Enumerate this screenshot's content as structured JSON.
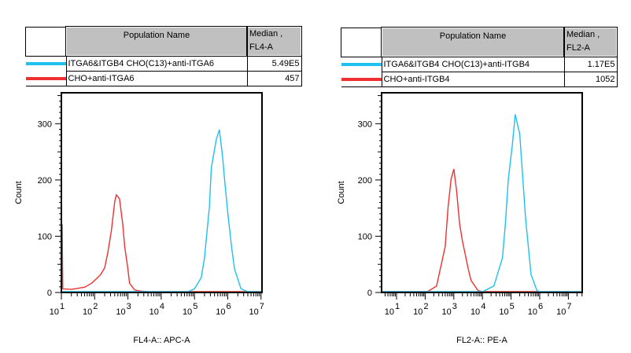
{
  "colors": {
    "cyan": "#1ec0f0",
    "red": "#f03030"
  },
  "chart_data": [
    {
      "type": "line",
      "subtype": "histogram",
      "xlabel": "FL4-A:: APC-A",
      "ylabel": "Count",
      "x_scale": "log",
      "x_tick_labels": [
        {
          "base": "10",
          "exp": "1"
        },
        {
          "base": "10",
          "exp": "2"
        },
        {
          "base": "10",
          "exp": "3"
        },
        {
          "base": "10",
          "exp": "4"
        },
        {
          "base": "10",
          "exp": "5"
        },
        {
          "base": "10",
          "exp": "6"
        },
        {
          "base": "10",
          "exp": "7"
        }
      ],
      "y_ticks": [
        "0",
        "100",
        "200",
        "300"
      ],
      "ylim": [
        0,
        355
      ],
      "legend": {
        "header_name": "Population Name",
        "header_stat": "Median ,",
        "header_stat2": "FL4-A",
        "rows": [
          {
            "name": "ITGA6&ITGB4 CHO(C13)+anti-ITGA6",
            "median": "5.49E5",
            "color": "#1ec0f0"
          },
          {
            "name": "CHO+anti-ITGA6",
            "median": "457",
            "color": "#f03030"
          }
        ]
      },
      "series": [
        {
          "color": "#f03030",
          "points": [
            [
              10,
              120
            ],
            [
              11,
              5
            ],
            [
              20,
              4
            ],
            [
              50,
              8
            ],
            [
              80,
              15
            ],
            [
              100,
              20
            ],
            [
              150,
              30
            ],
            [
              200,
              42
            ],
            [
              250,
              70
            ],
            [
              320,
              110
            ],
            [
              400,
              160
            ],
            [
              450,
              172
            ],
            [
              560,
              165
            ],
            [
              700,
              120
            ],
            [
              800,
              80
            ],
            [
              1000,
              40
            ],
            [
              1120,
              15
            ],
            [
              1600,
              3
            ],
            [
              2500,
              1
            ],
            [
              4000,
              0
            ],
            [
              100000.0,
              0
            ],
            [
              10000000.0,
              0
            ]
          ]
        },
        {
          "color": "#1ec0f0",
          "points": [
            [
              10,
              0
            ],
            [
              63000.0,
              0
            ],
            [
              100000.0,
              5
            ],
            [
              160000.0,
              25
            ],
            [
              200000.0,
              60
            ],
            [
              280000.0,
              150
            ],
            [
              320000.0,
              220
            ],
            [
              450000.0,
              270
            ],
            [
              560000.0,
              288
            ],
            [
              700000.0,
              240
            ],
            [
              800000.0,
              200
            ],
            [
              1000000.0,
              140
            ],
            [
              1300000.0,
              80
            ],
            [
              1600000.0,
              40
            ],
            [
              2500000.0,
              5
            ],
            [
              4000000.0,
              0
            ],
            [
              10000000.0,
              0
            ]
          ]
        }
      ]
    },
    {
      "type": "line",
      "subtype": "histogram",
      "xlabel": "FL2-A:: PE-A",
      "ylabel": "Count",
      "x_scale": "log",
      "x_tick_labels": [
        {
          "base": "10",
          "exp": "1"
        },
        {
          "base": "10",
          "exp": "2"
        },
        {
          "base": "10",
          "exp": "3"
        },
        {
          "base": "10",
          "exp": "4"
        },
        {
          "base": "10",
          "exp": "5"
        },
        {
          "base": "10",
          "exp": "6"
        },
        {
          "base": "10",
          "exp": "7"
        }
      ],
      "y_ticks": [
        "0",
        "100",
        "200",
        "300"
      ],
      "ylim": [
        0,
        355
      ],
      "legend": {
        "header_name": "Population Name",
        "header_stat": "Median ,",
        "header_stat2": "FL2-A",
        "rows": [
          {
            "name": "ITGA6&ITGB4 CHO(C13)+anti-ITGB4",
            "median": "1.17E5",
            "color": "#1ec0f0"
          },
          {
            "name": "CHO+anti-ITGB4",
            "median": "1052",
            "color": "#f03030"
          }
        ]
      },
      "series": [
        {
          "color": "#f03030",
          "points": [
            [
              3,
              0
            ],
            [
              120,
              0
            ],
            [
              250,
              10
            ],
            [
              500,
              80
            ],
            [
              630,
              150
            ],
            [
              800,
              200
            ],
            [
              1000,
              218
            ],
            [
              1250,
              180
            ],
            [
              1600,
              120
            ],
            [
              2000,
              90
            ],
            [
              3200,
              40
            ],
            [
              4000,
              20
            ],
            [
              7000,
              2
            ],
            [
              10000.0,
              0
            ],
            [
              1000000.0,
              0
            ],
            [
              30000000.0,
              0
            ]
          ]
        },
        {
          "color": "#1ec0f0",
          "points": [
            [
              3,
              0
            ],
            [
              10000.0,
              0
            ],
            [
              25000.0,
              10
            ],
            [
              50000.0,
              60
            ],
            [
              63000.0,
              120
            ],
            [
              80000.0,
              200
            ],
            [
              110000.0,
              260
            ],
            [
              140000.0,
              315
            ],
            [
              200000.0,
              280
            ],
            [
              320000.0,
              130
            ],
            [
              500000.0,
              30
            ],
            [
              800000.0,
              2
            ],
            [
              1000000.0,
              0
            ],
            [
              30000000.0,
              0
            ]
          ]
        }
      ]
    }
  ]
}
